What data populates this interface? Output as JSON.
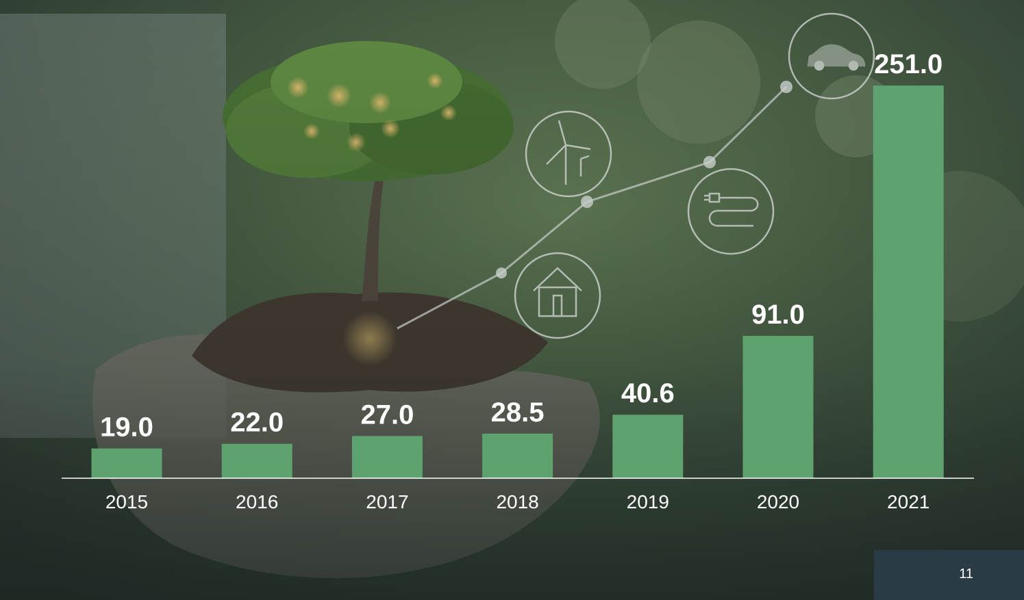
{
  "slide": {
    "page_number": "11"
  },
  "colors": {
    "bar": "#5ea26f",
    "axis": "#ffffff",
    "label": "#ffffff",
    "overlay": "#1f2c27",
    "page_box": "#2b3b45"
  },
  "decoration": {
    "icons": [
      "wind-turbine-icon",
      "house-icon",
      "plug-icon",
      "car-icon"
    ]
  },
  "chart_data": {
    "type": "bar",
    "categories": [
      "2015",
      "2016",
      "2017",
      "2018",
      "2019",
      "2020",
      "2021"
    ],
    "values": [
      19.0,
      22.0,
      27.0,
      28.5,
      40.6,
      91.0,
      251.0
    ],
    "value_labels": [
      "19.0",
      "22.0",
      "27.0",
      "28.5",
      "40.6",
      "91.0",
      "251.0"
    ],
    "title": "",
    "xlabel": "",
    "ylabel": "",
    "ylim": [
      0,
      251
    ],
    "grid": false,
    "legend": "none"
  }
}
